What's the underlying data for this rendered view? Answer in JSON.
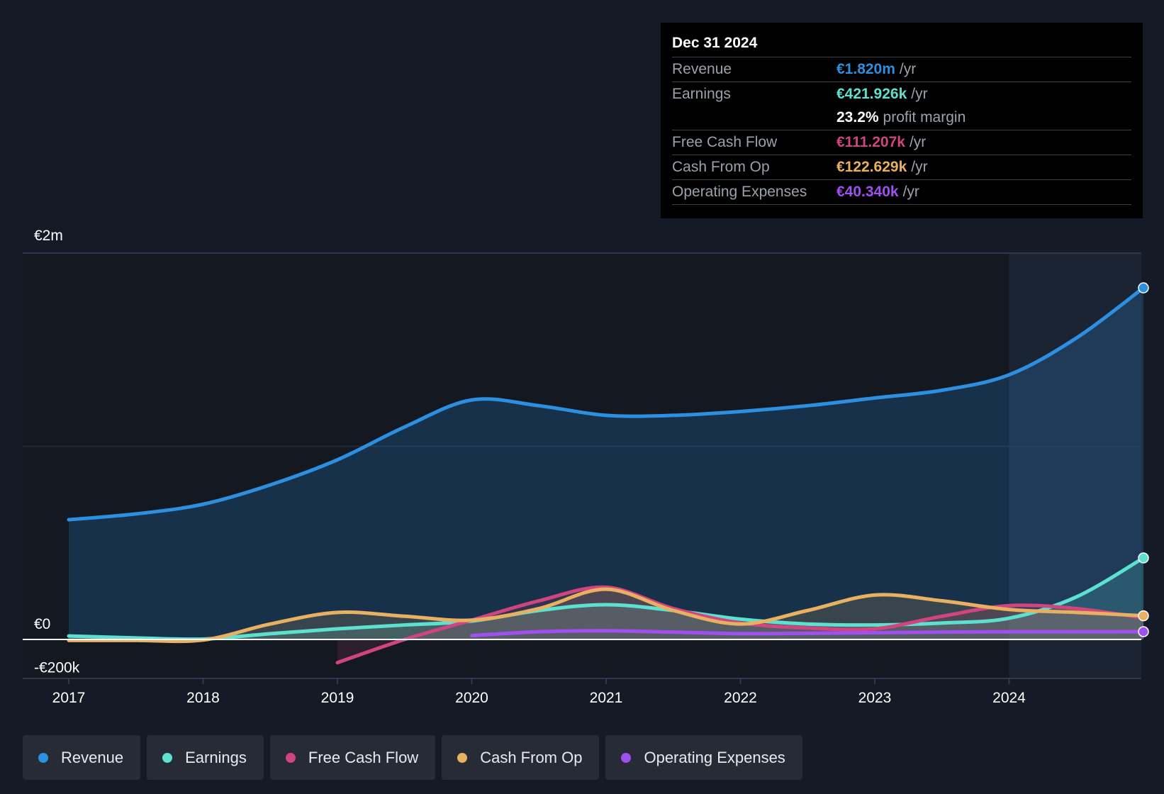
{
  "tooltip": {
    "date": "Dec 31 2024",
    "unit": "/yr",
    "margin_value": "23.2%",
    "margin_label": "profit margin",
    "rows": [
      {
        "label": "Revenue",
        "value": "€1.820m",
        "color": "#2d8fe0"
      },
      {
        "label": "Earnings",
        "value": "€421.926k",
        "color": "#5ee0d0"
      },
      {
        "label": "Free Cash Flow",
        "value": "€111.207k",
        "color": "#d0457f"
      },
      {
        "label": "Cash From Op",
        "value": "€122.629k",
        "color": "#e8b060"
      },
      {
        "label": "Operating Expenses",
        "value": "€40.340k",
        "color": "#a04ff0"
      }
    ]
  },
  "chart_data": {
    "type": "area",
    "x_ticks": [
      "2017",
      "2018",
      "2019",
      "2020",
      "2021",
      "2022",
      "2023",
      "2024"
    ],
    "y_tick_labels": [
      "€2m",
      "€0",
      "-€200k"
    ],
    "ylim": [
      -200000,
      2000000
    ],
    "legend_position": "bottom",
    "grid": true,
    "series": [
      {
        "name": "Revenue",
        "color": "#2d8fe0",
        "x": [
          2017.0,
          2017.5,
          2018.0,
          2018.5,
          2019.0,
          2019.5,
          2020.0,
          2020.5,
          2021.0,
          2021.5,
          2022.0,
          2022.5,
          2023.0,
          2023.5,
          2024.0,
          2024.5,
          2025.0
        ],
        "y": [
          620000,
          650000,
          700000,
          800000,
          930000,
          1100000,
          1240000,
          1210000,
          1160000,
          1160000,
          1180000,
          1210000,
          1250000,
          1290000,
          1370000,
          1560000,
          1820000
        ]
      },
      {
        "name": "Earnings",
        "color": "#5ee0d0",
        "x": [
          2017.0,
          2017.5,
          2018.0,
          2018.5,
          2019.0,
          2019.5,
          2020.0,
          2020.5,
          2021.0,
          2021.5,
          2022.0,
          2022.5,
          2023.0,
          2023.5,
          2024.0,
          2024.5,
          2025.0
        ],
        "y": [
          18000,
          8000,
          2000,
          30000,
          55000,
          75000,
          95000,
          150000,
          180000,
          150000,
          105000,
          80000,
          75000,
          85000,
          110000,
          220000,
          421926
        ]
      },
      {
        "name": "Free Cash Flow",
        "color": "#d0457f",
        "x": [
          2019.0,
          2019.5,
          2020.0,
          2020.5,
          2021.0,
          2021.5,
          2022.0,
          2022.5,
          2023.0,
          2023.5,
          2024.0,
          2024.5,
          2025.0
        ],
        "y": [
          -120000,
          0,
          100000,
          200000,
          270000,
          160000,
          85000,
          60000,
          55000,
          120000,
          175000,
          160000,
          111207
        ]
      },
      {
        "name": "Cash From Op",
        "color": "#e8b060",
        "x": [
          2017.0,
          2017.5,
          2018.0,
          2018.5,
          2019.0,
          2019.5,
          2020.0,
          2020.5,
          2021.0,
          2021.5,
          2022.0,
          2022.5,
          2023.0,
          2023.5,
          2024.0,
          2024.5,
          2025.0
        ],
        "y": [
          -5000,
          -5000,
          -3000,
          80000,
          140000,
          120000,
          100000,
          160000,
          260000,
          150000,
          80000,
          150000,
          230000,
          200000,
          155000,
          140000,
          122629
        ]
      },
      {
        "name": "Operating Expenses",
        "color": "#a04ff0",
        "x": [
          2020.0,
          2020.5,
          2021.0,
          2021.5,
          2022.0,
          2022.5,
          2023.0,
          2023.5,
          2024.0,
          2024.5,
          2025.0
        ],
        "y": [
          20000,
          40000,
          45000,
          38000,
          30000,
          32000,
          35000,
          38000,
          40000,
          40000,
          40340
        ]
      }
    ]
  },
  "legend": [
    {
      "label": "Revenue",
      "color": "#2d8fe0"
    },
    {
      "label": "Earnings",
      "color": "#5ee0d0"
    },
    {
      "label": "Free Cash Flow",
      "color": "#d0457f"
    },
    {
      "label": "Cash From Op",
      "color": "#e8b060"
    },
    {
      "label": "Operating Expenses",
      "color": "#a04ff0"
    }
  ]
}
